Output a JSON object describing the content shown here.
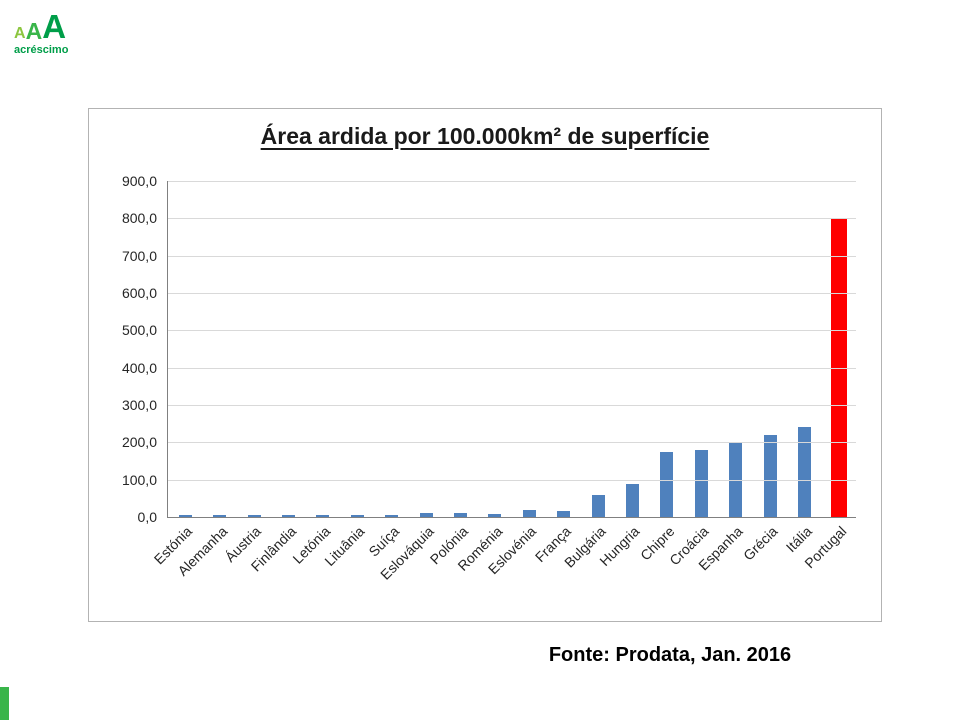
{
  "logo": {
    "letters": [
      "A",
      "A",
      "A"
    ],
    "caption": "acréscimo"
  },
  "chart_data": {
    "type": "bar",
    "title": "Área ardida por 100.000km² de superfície",
    "categories": [
      "Estónia",
      "Alemanha",
      "Áustria",
      "Finlândia",
      "Letónia",
      "Lituânia",
      "Suíça",
      "Eslováquia",
      "Polónia",
      "Roménia",
      "Eslovénia",
      "França",
      "Bulgária",
      "Hungria",
      "Chipre",
      "Croácia",
      "Espanha",
      "Grécia",
      "Itália",
      "Portugal"
    ],
    "values": [
      5,
      4,
      5,
      5,
      5,
      5,
      6,
      10,
      10,
      8,
      18,
      17,
      60,
      88,
      175,
      180,
      200,
      220,
      240,
      800
    ],
    "ylim": [
      0,
      900
    ],
    "y_ticks": [
      "900,0",
      "800,0",
      "700,0",
      "600,0",
      "500,0",
      "400,0",
      "300,0",
      "200,0",
      "100,0",
      "0,0"
    ],
    "xlabel": "",
    "ylabel": "",
    "grid": true,
    "legend": false,
    "bar_color": "#4f81bd",
    "highlight_index": 19,
    "highlight_color": "#ff0000"
  },
  "footer": {
    "source": "Fonte: Prodata, Jan. 2016"
  }
}
